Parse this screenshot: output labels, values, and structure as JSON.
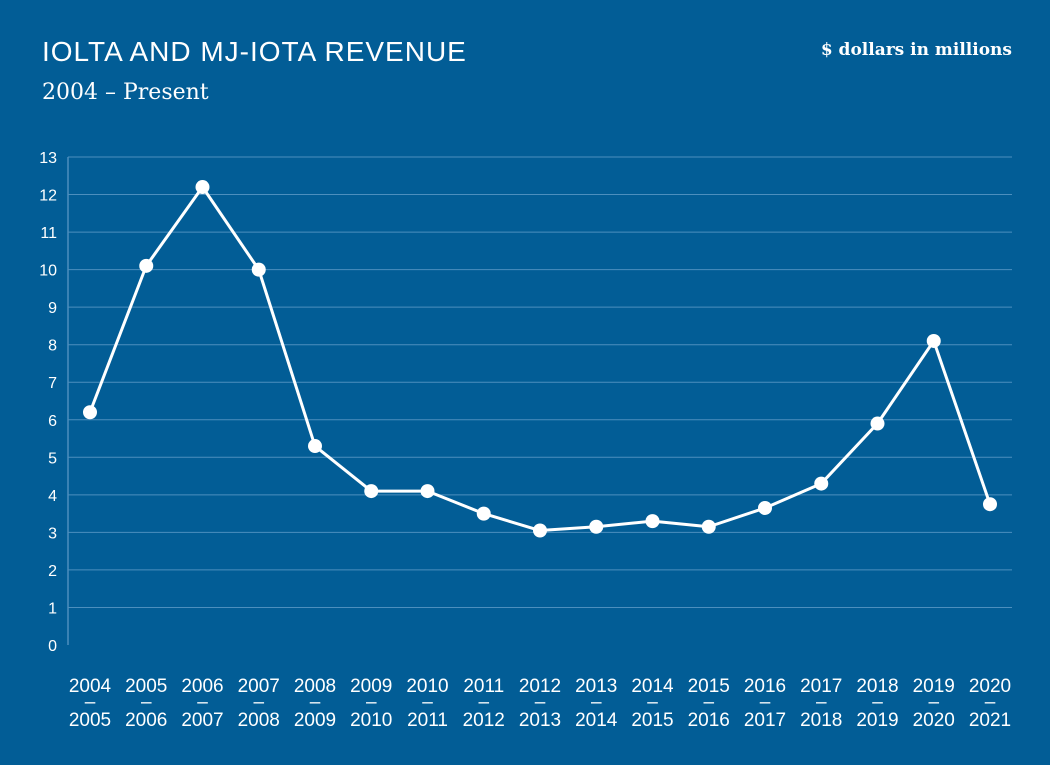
{
  "header": {
    "title": "IOLTA AND MJ-IOTA REVENUE",
    "subtitle": "2004 – Present",
    "units": "$ dollars in millions"
  },
  "colors": {
    "background": "#025D96",
    "grid": "#4C8FBE",
    "line": "#FFFFFF",
    "marker": "#FFFFFF"
  },
  "chart_data": {
    "type": "line",
    "title": "IOLTA AND MJ-IOTA REVENUE",
    "subtitle": "2004 – Present",
    "ylabel": "$ dollars in millions",
    "xlabel": "",
    "ylim": [
      0,
      13
    ],
    "yticks": [
      0,
      1,
      2,
      3,
      4,
      5,
      6,
      7,
      8,
      9,
      10,
      11,
      12,
      13
    ],
    "grid": true,
    "categories": [
      [
        "2004",
        "–",
        "2005"
      ],
      [
        "2005",
        "–",
        "2006"
      ],
      [
        "2006",
        "–",
        "2007"
      ],
      [
        "2007",
        "–",
        "2008"
      ],
      [
        "2008",
        "–",
        "2009"
      ],
      [
        "2009",
        "–",
        "2010"
      ],
      [
        "2010",
        "–",
        "2011"
      ],
      [
        "2011",
        "–",
        "2012"
      ],
      [
        "2012",
        "–",
        "2013"
      ],
      [
        "2013",
        "–",
        "2014"
      ],
      [
        "2014",
        "–",
        "2015"
      ],
      [
        "2015",
        "–",
        "2016"
      ],
      [
        "2016",
        "–",
        "2017"
      ],
      [
        "2017",
        "–",
        "2018"
      ],
      [
        "2018",
        "–",
        "2019"
      ],
      [
        "2019",
        "–",
        "2020"
      ],
      [
        "2020",
        "–",
        "2021"
      ]
    ],
    "series": [
      {
        "values": [
          6.2,
          10.1,
          12.2,
          10.0,
          5.3,
          4.1,
          4.1,
          3.5,
          3.05,
          3.15,
          3.3,
          3.15,
          3.65,
          4.3,
          5.9,
          8.1,
          3.75
        ]
      }
    ]
  }
}
